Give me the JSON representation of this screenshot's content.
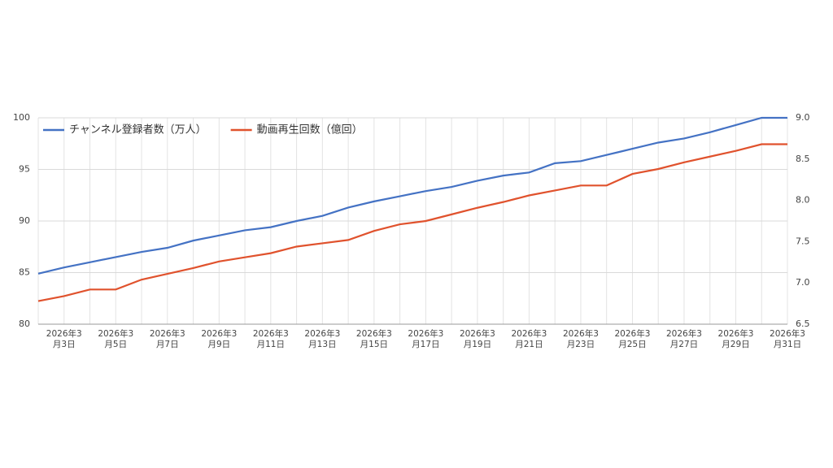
{
  "chart_data": {
    "type": "line",
    "categories": [
      null,
      "2026年3月3日",
      null,
      "2026年3月5日",
      null,
      "2026年3月7日",
      null,
      "2026年3月9日",
      null,
      "2026年3月11日",
      null,
      "2026年3月13日",
      null,
      "2026年3月15日",
      null,
      "2026年3月17日",
      null,
      "2026年3月19日",
      null,
      "2026年3月21日",
      null,
      "2026年3月23日",
      null,
      "2026年3月25日",
      null,
      "2026年3月27日",
      null,
      "2026年3月29日",
      null,
      "2026年3月31日"
    ],
    "series": [
      {
        "name": "チャンネル登録者数（万人）",
        "color": "#4472c4",
        "values": [
          84.9,
          85.5,
          86.0,
          86.5,
          87.0,
          87.4,
          88.1,
          88.6,
          89.1,
          89.4,
          90.0,
          90.5,
          91.3,
          91.9,
          92.4,
          92.9,
          93.3,
          93.9,
          94.4,
          94.7,
          95.6,
          95.8,
          96.4,
          97.0,
          97.6,
          98.0,
          98.6,
          99.3,
          100,
          100
        ]
      },
      {
        "name": "動画再生回数（億回）",
        "color": "#e0522d",
        "axis": "y2",
        "values": [
          6.78,
          6.84,
          6.92,
          6.92,
          7.04,
          7.11,
          7.18,
          7.26,
          7.31,
          7.36,
          7.44,
          7.48,
          7.52,
          7.63,
          7.71,
          7.75,
          7.83,
          7.91,
          7.98,
          8.06,
          8.12,
          8.18,
          8.18,
          8.32,
          8.38,
          8.46,
          8.53,
          8.6,
          8.68,
          8.68
        ]
      }
    ],
    "ylim": [
      80,
      100
    ],
    "yticks": [
      80,
      85,
      90,
      95,
      100
    ],
    "y2lim": [
      6.5,
      9.0
    ],
    "y2ticks": [
      6.5,
      {
        "value": 7.0,
        "label": "7.0"
      },
      7.5,
      {
        "value": 8.0,
        "label": "8.0"
      },
      8.5,
      {
        "value": 9.0,
        "label": "9.0"
      }
    ],
    "grid": true,
    "legend": "top-left"
  }
}
